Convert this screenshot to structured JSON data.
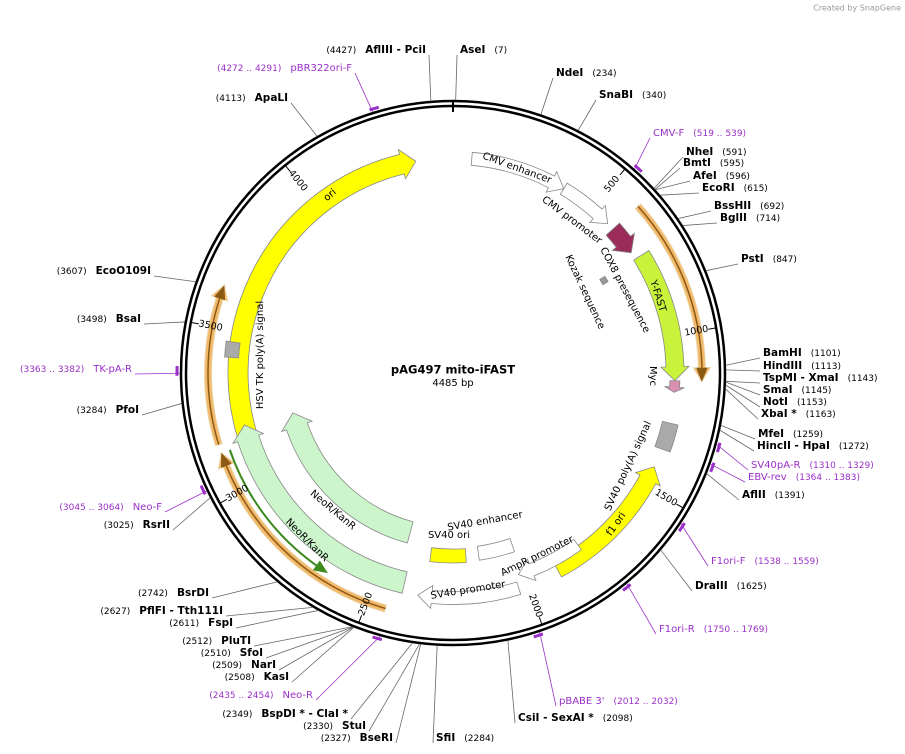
{
  "header": {
    "credit": "Created by SnapGene"
  },
  "map": {
    "name": "pAG497 mito-iFAST",
    "length": "4485 bp",
    "ticks": [
      500,
      1000,
      1500,
      2000,
      2500,
      3000,
      3500,
      4000
    ],
    "sites": [
      {
        "name": "AflIII  - PciI",
        "position": "(4427)"
      },
      {
        "name": "AseI",
        "position": "(7)"
      },
      {
        "name": "NdeI",
        "position": "(234)"
      },
      {
        "name": "SnaBI",
        "position": "(340)"
      },
      {
        "name": "NheI",
        "position": "(591)"
      },
      {
        "name": "BmtI",
        "position": "(595)"
      },
      {
        "name": "AfeI",
        "position": "(596)"
      },
      {
        "name": "EcoRI",
        "position": "(615)"
      },
      {
        "name": "BssHII",
        "position": "(692)"
      },
      {
        "name": "BglII",
        "position": "(714)"
      },
      {
        "name": "PstI",
        "position": "(847)"
      },
      {
        "name": "BamHI",
        "position": "(1101)"
      },
      {
        "name": "HindIII",
        "position": "(1113)"
      },
      {
        "name": "TspMI  - XmaI",
        "position": "(1143)"
      },
      {
        "name": "SmaI",
        "position": "(1145)"
      },
      {
        "name": "NotI",
        "position": "(1153)"
      },
      {
        "name": "XbaI *",
        "position": "(1163)"
      },
      {
        "name": "MfeI",
        "position": "(1259)"
      },
      {
        "name": "HincII  - HpaI",
        "position": "(1272)"
      },
      {
        "name": "AflII",
        "position": "(1391)"
      },
      {
        "name": "DraIII",
        "position": "(1625)"
      },
      {
        "name": "CsiI  - SexAI *",
        "position": "(2098)"
      },
      {
        "name": "SfiI",
        "position": "(2284)"
      },
      {
        "name": "BseRI",
        "position": "(2327)"
      },
      {
        "name": "StuI",
        "position": "(2330)"
      },
      {
        "name": "BspDI *  - ClaI *",
        "position": "(2349)"
      },
      {
        "name": "KasI",
        "position": "(2508)"
      },
      {
        "name": "NarI",
        "position": "(2509)"
      },
      {
        "name": "SfoI",
        "position": "(2510)"
      },
      {
        "name": "PluTI",
        "position": "(2512)"
      },
      {
        "name": "FspI",
        "position": "(2611)"
      },
      {
        "name": "PflFI  - Tth111I",
        "position": "(2627)"
      },
      {
        "name": "BsrDI",
        "position": "(2742)"
      },
      {
        "name": "RsrII",
        "position": "(3025)"
      },
      {
        "name": "PfoI",
        "position": "(3284)"
      },
      {
        "name": "BsaI",
        "position": "(3498)"
      },
      {
        "name": "EcoO109I",
        "position": "(3607)"
      },
      {
        "name": "ApaLI",
        "position": "(4113)"
      }
    ],
    "primers": [
      {
        "name": "pBR322ori-F",
        "range": "(4272 .. 4291)"
      },
      {
        "name": "CMV-F",
        "range": "(519 .. 539)"
      },
      {
        "name": "SV40pA-R",
        "range": "(1310 .. 1329)"
      },
      {
        "name": "EBV-rev",
        "range": "(1364 .. 1383)"
      },
      {
        "name": "F1ori-F",
        "range": "(1538 .. 1559)"
      },
      {
        "name": "F1ori-R",
        "range": "(1750 .. 1769)"
      },
      {
        "name": "pBABE 3'",
        "range": "(2012 .. 2032)"
      },
      {
        "name": "Neo-R",
        "range": "(2435 .. 2454)"
      },
      {
        "name": "Neo-F",
        "range": "(3045 .. 3064)"
      },
      {
        "name": "TK-pA-R",
        "range": "(3363 .. 3382)"
      }
    ],
    "features": [
      "ori",
      "CMV enhancer",
      "CMV promoter",
      "COX8 presequence",
      "Kozak sequence",
      "Y-FAST",
      "Myc",
      "SV40 poly(A) signal",
      "f1 ori",
      "SV40 enhancer",
      "SV40 ori",
      "AmpR promoter",
      "SV40 promoter",
      "NeoR/KanR",
      "NeoR/KanR",
      "HSV TK poly(A) signal"
    ]
  }
}
